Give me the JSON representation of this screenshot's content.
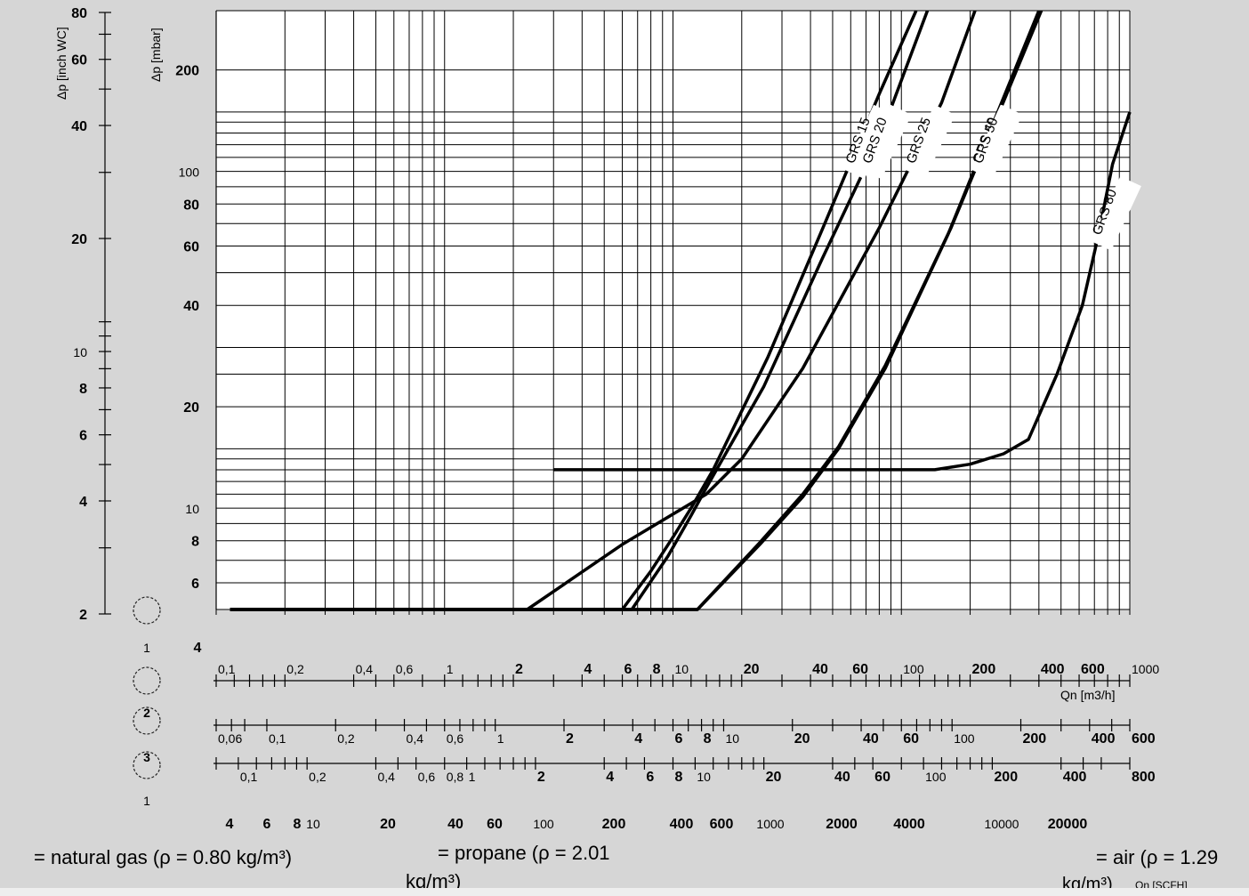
{
  "chart_data": {
    "type": "line",
    "xscale": "log",
    "yscale": "log",
    "xlim": [
      0.1,
      1000
    ],
    "ylim": [
      5,
      300
    ],
    "left_axes": [
      {
        "label": "Δp [inch WC]",
        "ticks": [
          "80",
          "60",
          "40",
          "20",
          "10",
          "8",
          "6",
          "4",
          "2"
        ]
      },
      {
        "label": "Δp [mbar]",
        "ticks": [
          "200",
          "100",
          "80",
          "60",
          "40",
          "20",
          "10",
          "8",
          "6"
        ]
      }
    ],
    "series": [
      {
        "name": "GRS 15",
        "points": [
          [
            0.115,
            5
          ],
          [
            6.0,
            5
          ],
          [
            8.0,
            6.5
          ],
          [
            10.0,
            8.2
          ],
          [
            12.0,
            10
          ],
          [
            15.0,
            13
          ],
          [
            26.0,
            28
          ],
          [
            47.0,
            72
          ],
          [
            80.0,
            170
          ],
          [
            116.0,
            300
          ]
        ]
      },
      {
        "name": "GRS 20",
        "points": [
          [
            0.115,
            5
          ],
          [
            6.6,
            5
          ],
          [
            9.5,
            7.2
          ],
          [
            12.0,
            9.5
          ],
          [
            14.0,
            11.5
          ],
          [
            25.0,
            23
          ],
          [
            45.0,
            55
          ],
          [
            82.0,
            130
          ],
          [
            130.0,
            300
          ]
        ]
      },
      {
        "name": "GRS 25",
        "points": [
          [
            0.115,
            5
          ],
          [
            2.3,
            5
          ],
          [
            6.0,
            7.8
          ],
          [
            14.0,
            11
          ],
          [
            20.0,
            14
          ],
          [
            37.0,
            26
          ],
          [
            80.0,
            68
          ],
          [
            150.0,
            160
          ],
          [
            210.0,
            300
          ]
        ]
      },
      {
        "name": "GRS 40",
        "points": [
          [
            0.115,
            5
          ],
          [
            12.8,
            5
          ],
          [
            24.0,
            7.8
          ],
          [
            37.0,
            10.8
          ],
          [
            53.0,
            15
          ],
          [
            85.0,
            26
          ],
          [
            160.0,
            65
          ],
          [
            400.0,
            300
          ]
        ]
      },
      {
        "name": "GRS 50",
        "points": [
          [
            0.115,
            5
          ],
          [
            12.8,
            5
          ],
          [
            24.0,
            7.9
          ],
          [
            37.0,
            11
          ],
          [
            53.0,
            15.2
          ],
          [
            85.0,
            26.5
          ],
          [
            165.0,
            68
          ],
          [
            410.0,
            300
          ]
        ]
      },
      {
        "name": "GRS 80",
        "points": [
          [
            3.0,
            13
          ],
          [
            140.0,
            13
          ],
          [
            200.0,
            13.5
          ],
          [
            280.0,
            14.5
          ],
          [
            360.0,
            16
          ],
          [
            480.0,
            25
          ],
          [
            620.0,
            40
          ],
          [
            730.0,
            65
          ],
          [
            840.0,
            105
          ],
          [
            1000.0,
            150
          ]
        ]
      }
    ],
    "flow_scales": [
      {
        "id": "1",
        "label": "Qn [m3/h]",
        "ticks": [
          "0,1",
          "0,2",
          "0,4",
          "0,6",
          "1",
          "2",
          "4",
          "6",
          "8",
          "10",
          "20",
          "40",
          "60",
          "100",
          "200",
          "400",
          "600",
          "1000"
        ]
      },
      {
        "id": "2",
        "label": "",
        "ticks": [
          "0,06",
          "0,1",
          "0,2",
          "0,4",
          "0,6",
          "1",
          "2",
          "4",
          "6",
          "8",
          "10",
          "20",
          "40",
          "60",
          "100",
          "200",
          "400",
          "600"
        ]
      },
      {
        "id": "3",
        "label": "",
        "ticks": [
          "0,1",
          "0,2",
          "0,4",
          "0,6",
          "0,8",
          "1",
          "2",
          "4",
          "6",
          "8",
          "10",
          "20",
          "40",
          "60",
          "100",
          "200",
          "400",
          "800"
        ]
      },
      {
        "id": "1",
        "label": "Qn [SCFH]",
        "ticks": [
          "4",
          "6",
          "8",
          "10",
          "20",
          "40",
          "60",
          "100",
          "200",
          "400",
          "600",
          "1000",
          "2000",
          "4000",
          "10000",
          "20000"
        ]
      }
    ],
    "stray_tick_label": "4"
  },
  "legend": {
    "natural_gas": "= natural gas (ρ = 0.80 kg/m³)",
    "propane_line1": "= propane (ρ = 2.01",
    "propane_line2": "kg/m³)",
    "air_line1": "= air (ρ = 1.29",
    "air_line2": "kg/m³)"
  }
}
